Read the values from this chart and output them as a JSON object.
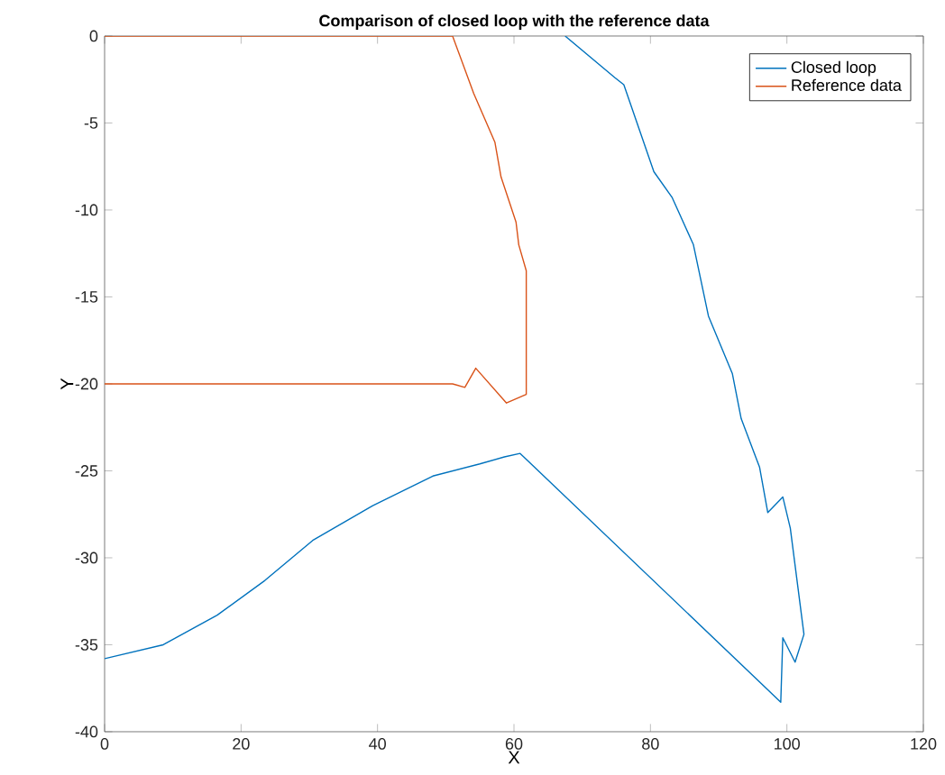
{
  "chart_data": {
    "type": "line",
    "title": "Comparison of closed loop with the reference data",
    "xlabel": "X",
    "ylabel": "Y",
    "xlim": [
      0,
      120
    ],
    "xticks": [
      0,
      20,
      40,
      60,
      80,
      100,
      120
    ],
    "ylim": [
      -40,
      0
    ],
    "yticks": [
      -40,
      -35,
      -30,
      -25,
      -20,
      -15,
      -10,
      -5,
      0
    ],
    "grid": false,
    "legend": "top right",
    "marker": "none",
    "line_style": "solid",
    "series": [
      {
        "name": "Closed loop",
        "color": "#0072bd",
        "x": [
          0,
          8.6,
          16.5,
          23.5,
          30.5,
          39.3,
          48.1,
          55,
          58.6,
          60.9,
          99.1,
          99.4,
          101.2,
          102.5,
          100.5,
          99.4,
          97.2,
          96,
          93.3,
          92,
          88.5,
          86.3,
          83.2,
          80.5,
          76.1,
          74.8,
          67.5
        ],
        "values": [
          -35.8,
          -35,
          -33.3,
          -31.3,
          -29,
          -27,
          -25.3,
          -24.6,
          -24.2,
          -24,
          -38.3,
          -34.6,
          -36,
          -34.4,
          -28.3,
          -26.5,
          -27.4,
          -24.8,
          -22,
          -19.4,
          -16.1,
          -12,
          -9.3,
          -7.8,
          -2.8,
          -2.4,
          0
        ]
      },
      {
        "name": "Reference data",
        "color": "#d95319",
        "x": [
          0,
          51,
          54.1,
          57.2,
          58.1,
          60.3,
          60.7,
          61.8,
          61.8,
          58.9,
          54.4,
          52.8,
          51,
          0
        ],
        "values": [
          0,
          0,
          -3.3,
          -6.1,
          -8.1,
          -10.7,
          -12,
          -13.5,
          -20.6,
          -21.1,
          -19.1,
          -20.2,
          -20,
          -20
        ]
      }
    ]
  }
}
